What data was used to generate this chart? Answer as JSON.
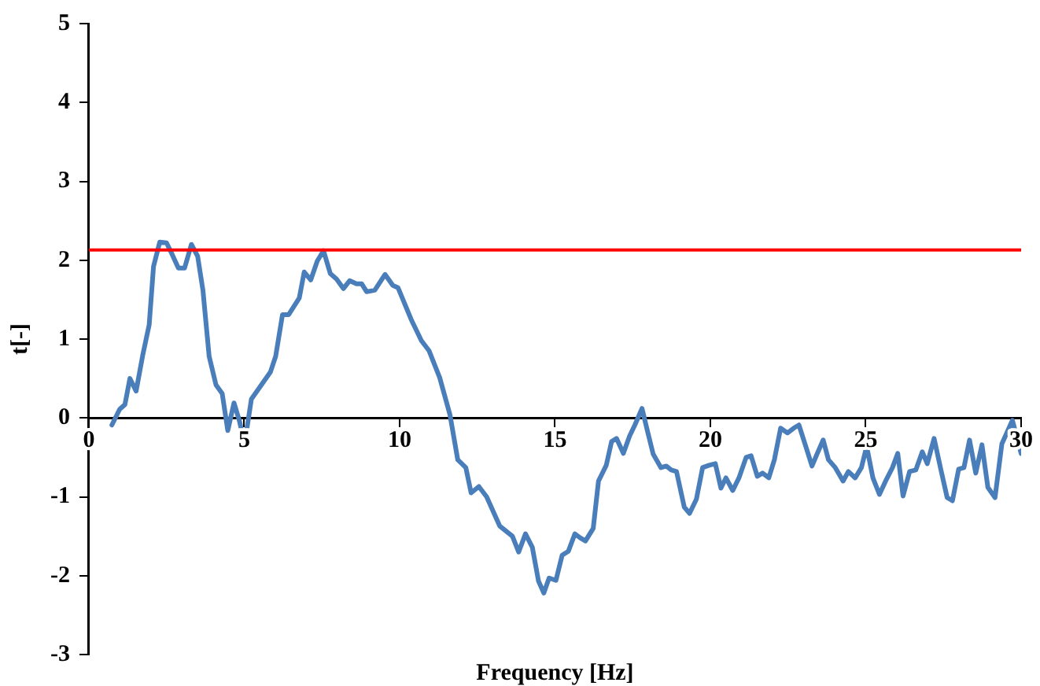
{
  "chart_data": {
    "type": "line",
    "xlabel": "Frequency [Hz]",
    "ylabel": "t[-]",
    "xlim": [
      0,
      30
    ],
    "xticks": [
      0,
      5,
      10,
      15,
      20,
      25,
      30
    ],
    "ylim": [
      -3,
      5
    ],
    "yticks": [
      -3,
      -2,
      -1,
      0,
      1,
      2,
      3,
      4,
      5
    ],
    "grid": false,
    "legend": false,
    "marker": "none",
    "line_style": "solid",
    "ref_lines": [
      {
        "axis": "y",
        "value": 2.13,
        "label": null,
        "color": "#ff0000"
      }
    ],
    "series": [
      {
        "color": "#4a7ebb",
        "x": [
          0.74,
          0.99,
          1.16,
          1.32,
          1.52,
          1.74,
          1.94,
          2.08,
          2.28,
          2.5,
          2.66,
          2.88,
          3.08,
          3.3,
          3.5,
          3.67,
          3.87,
          4.09,
          4.29,
          4.47,
          4.67,
          4.84,
          5.01,
          5.23,
          5.48,
          5.84,
          6.01,
          6.23,
          6.43,
          6.77,
          6.93,
          7.14,
          7.35,
          7.55,
          7.77,
          7.97,
          8.19,
          8.39,
          8.61,
          8.78,
          8.94,
          9.2,
          9.53,
          9.78,
          9.95,
          10.37,
          10.7,
          10.95,
          11.29,
          11.62,
          11.87,
          12.13,
          12.3,
          12.55,
          12.8,
          13.22,
          13.63,
          13.83,
          14.05,
          14.27,
          14.47,
          14.64,
          14.81,
          15.03,
          15.23,
          15.43,
          15.64,
          15.81,
          15.98,
          16.23,
          16.4,
          16.65,
          16.82,
          16.98,
          17.2,
          17.4,
          17.57,
          17.8,
          17.99,
          18.16,
          18.41,
          18.58,
          18.74,
          18.91,
          19.16,
          19.33,
          19.55,
          19.75,
          19.96,
          20.16,
          20.34,
          20.5,
          20.72,
          20.92,
          21.15,
          21.31,
          21.51,
          21.68,
          21.88,
          22.06,
          22.26,
          22.48,
          22.68,
          22.85,
          23.07,
          23.27,
          23.43,
          23.63,
          23.8,
          24.02,
          24.27,
          24.44,
          24.66,
          24.86,
          25.03,
          25.23,
          25.44,
          25.64,
          25.86,
          26.03,
          26.2,
          26.41,
          26.61,
          26.82,
          26.98,
          27.2,
          27.42,
          27.62,
          27.79,
          27.99,
          28.16,
          28.34,
          28.54,
          28.74,
          28.93,
          29.16,
          29.38,
          29.72,
          30.0
        ],
        "values": [
          -0.09,
          0.11,
          0.17,
          0.5,
          0.34,
          0.81,
          1.18,
          1.92,
          2.23,
          2.22,
          2.09,
          1.9,
          1.9,
          2.2,
          2.05,
          1.62,
          0.78,
          0.42,
          0.31,
          -0.16,
          0.19,
          -0.03,
          -0.33,
          0.24,
          0.38,
          0.58,
          0.78,
          1.31,
          1.31,
          1.52,
          1.85,
          1.75,
          1.99,
          2.12,
          1.83,
          1.76,
          1.64,
          1.74,
          1.7,
          1.7,
          1.6,
          1.62,
          1.82,
          1.68,
          1.65,
          1.25,
          0.98,
          0.85,
          0.51,
          0.04,
          -0.53,
          -0.63,
          -0.95,
          -0.87,
          -1.0,
          -1.37,
          -1.5,
          -1.7,
          -1.47,
          -1.64,
          -2.07,
          -2.22,
          -2.03,
          -2.06,
          -1.74,
          -1.69,
          -1.47,
          -1.52,
          -1.56,
          -1.4,
          -0.8,
          -0.6,
          -0.3,
          -0.26,
          -0.45,
          -0.23,
          -0.09,
          0.12,
          -0.19,
          -0.46,
          -0.63,
          -0.61,
          -0.66,
          -0.68,
          -1.13,
          -1.21,
          -1.03,
          -0.63,
          -0.6,
          -0.58,
          -0.89,
          -0.76,
          -0.92,
          -0.76,
          -0.5,
          -0.48,
          -0.74,
          -0.7,
          -0.76,
          -0.53,
          -0.13,
          -0.19,
          -0.13,
          -0.09,
          -0.36,
          -0.61,
          -0.46,
          -0.28,
          -0.53,
          -0.63,
          -0.8,
          -0.68,
          -0.76,
          -0.63,
          -0.36,
          -0.76,
          -0.97,
          -0.8,
          -0.63,
          -0.45,
          -0.99,
          -0.68,
          -0.66,
          -0.43,
          -0.58,
          -0.26,
          -0.66,
          -1.01,
          -1.05,
          -0.65,
          -0.63,
          -0.28,
          -0.7,
          -0.34,
          -0.88,
          -1.01,
          -0.33,
          -0.03,
          -0.45
        ]
      }
    ]
  }
}
